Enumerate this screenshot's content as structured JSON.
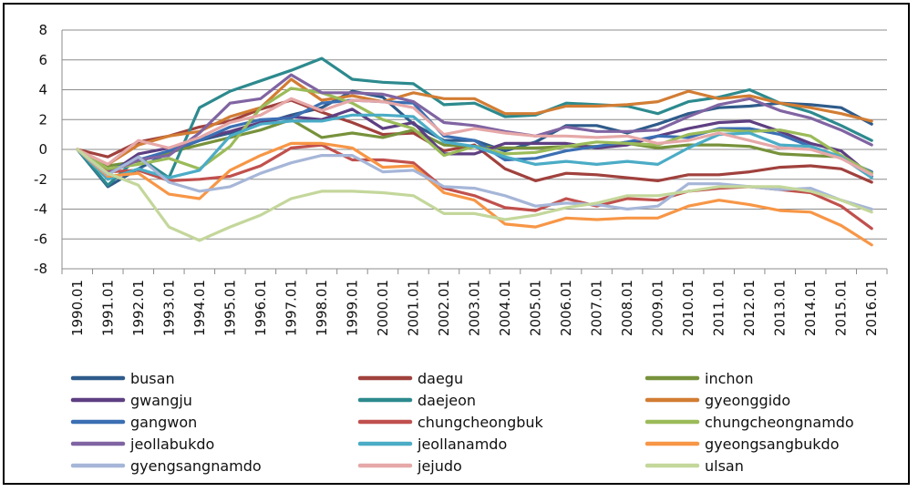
{
  "chart_data": {
    "type": "line",
    "title": "",
    "xlabel": "",
    "ylabel": "",
    "ylim": [
      -8,
      8
    ],
    "yticks": [
      -8,
      -6,
      -4,
      -2,
      0,
      2,
      4,
      6,
      8
    ],
    "grid": "horizontal",
    "legend_position": "bottom",
    "x": [
      "1990.01",
      "1991.01",
      "1992.01",
      "1993.01",
      "1994.01",
      "1995.01",
      "1996.01",
      "1997.01",
      "1998.01",
      "1999.01",
      "2000.01",
      "2001.01",
      "2002.01",
      "2003.01",
      "2004.01",
      "2005.01",
      "2006.01",
      "2007.01",
      "2008.01",
      "2009.01",
      "2010.01",
      "2011.01",
      "2012.01",
      "2013.01",
      "2014.01",
      "2015.01",
      "2016.01"
    ],
    "series": [
      {
        "name": "busan",
        "color": "#2e5b8a",
        "values": [
          0,
          -2.5,
          -1.3,
          -0.2,
          0.6,
          1.1,
          1.7,
          2.3,
          2.8,
          3.9,
          3.5,
          1.7,
          0.6,
          0.6,
          -0.1,
          0.5,
          1.6,
          1.6,
          1.1,
          1.7,
          2.4,
          2.8,
          2.9,
          3.1,
          3.0,
          2.8,
          1.7
        ]
      },
      {
        "name": "daegu",
        "color": "#a0413d",
        "values": [
          0,
          -0.5,
          0.5,
          0.9,
          1.5,
          1.9,
          2.7,
          3.3,
          2.5,
          1.8,
          1.0,
          1.1,
          -0.1,
          0.3,
          -1.3,
          -2.1,
          -1.6,
          -1.7,
          -1.9,
          -2.1,
          -1.7,
          -1.7,
          -1.5,
          -1.2,
          -1.1,
          -1.3,
          -2.2
        ]
      },
      {
        "name": "inchon",
        "color": "#77923b",
        "values": [
          0,
          -1.1,
          -0.8,
          -0.2,
          0.3,
          0.8,
          1.3,
          2.0,
          0.8,
          1.1,
          0.8,
          1.3,
          0.3,
          0.2,
          0.1,
          0.1,
          0.2,
          0.2,
          0.4,
          0.1,
          0.3,
          0.3,
          0.2,
          -0.3,
          -0.4,
          -0.5,
          -1.6
        ]
      },
      {
        "name": "gwangju",
        "color": "#5e3f82",
        "values": [
          0,
          -1.7,
          -0.3,
          0.1,
          0.7,
          1.2,
          1.8,
          2.2,
          2.0,
          2.7,
          1.4,
          1.8,
          -0.3,
          -0.3,
          0.4,
          0.4,
          0.4,
          0.1,
          0.3,
          0.9,
          1.4,
          1.8,
          1.9,
          1.2,
          0.4,
          -0.1,
          -1.8
        ]
      },
      {
        "name": "daejeon",
        "color": "#2d8a8e",
        "values": [
          0,
          -2.4,
          -0.5,
          -1.9,
          2.8,
          3.9,
          4.6,
          5.3,
          6.1,
          4.7,
          4.5,
          4.4,
          3.0,
          3.1,
          2.2,
          2.3,
          3.1,
          3.0,
          2.9,
          2.4,
          3.2,
          3.5,
          4.0,
          3.1,
          2.5,
          1.6,
          0.6
        ]
      },
      {
        "name": "gyeonggido",
        "color": "#d27d34",
        "values": [
          0,
          -1.0,
          0.3,
          0.9,
          1.2,
          2.2,
          2.8,
          4.7,
          3.3,
          3.6,
          3.2,
          3.8,
          3.4,
          3.4,
          2.4,
          2.4,
          2.9,
          2.9,
          3.0,
          3.2,
          3.9,
          3.4,
          3.6,
          3.1,
          2.8,
          2.4,
          1.9
        ]
      },
      {
        "name": "gangwon",
        "color": "#3b6fb3",
        "values": [
          0,
          -1.4,
          -0.7,
          -0.1,
          0.6,
          1.5,
          2.0,
          2.1,
          3.1,
          3.3,
          3.2,
          3.1,
          0.9,
          0.6,
          -0.7,
          -0.6,
          -0.1,
          0.2,
          0.5,
          0.9,
          0.8,
          1.4,
          1.4,
          1.0,
          0.2,
          -0.6,
          -1.5
        ]
      },
      {
        "name": "chungcheongbuk",
        "color": "#c0504d",
        "values": [
          0,
          -1.5,
          -1.4,
          -2.1,
          -2.0,
          -1.8,
          -1.1,
          0.1,
          0.3,
          -0.7,
          -0.7,
          -0.9,
          -2.6,
          -3.1,
          -3.9,
          -4.1,
          -3.3,
          -3.8,
          -3.3,
          -3.4,
          -2.8,
          -2.6,
          -2.5,
          -2.7,
          -2.9,
          -3.8,
          -5.3
        ]
      },
      {
        "name": "chungcheongnamdo",
        "color": "#9bbb59",
        "values": [
          0,
          -1.3,
          -1.0,
          -0.6,
          -1.3,
          0.2,
          2.8,
          4.1,
          3.8,
          3.1,
          2.0,
          1.4,
          -0.4,
          0.2,
          -0.3,
          -0.2,
          0.2,
          0.5,
          0.4,
          0.3,
          1.0,
          1.3,
          1.2,
          1.3,
          0.9,
          -0.4,
          -1.6
        ]
      },
      {
        "name": "jeollabukdo",
        "color": "#8064a2",
        "values": [
          0,
          -1.6,
          -0.7,
          -0.4,
          1.1,
          3.1,
          3.4,
          5.0,
          3.8,
          3.8,
          3.7,
          3.2,
          1.8,
          1.6,
          1.2,
          0.9,
          1.5,
          1.2,
          1.2,
          1.3,
          2.2,
          3.0,
          3.4,
          2.6,
          2.1,
          1.3,
          0.3
        ]
      },
      {
        "name": "jeollanamdo",
        "color": "#4bacc6",
        "values": [
          0,
          -2.0,
          -1.3,
          -1.9,
          -1.4,
          0.9,
          1.7,
          1.9,
          1.9,
          2.3,
          2.3,
          2.2,
          0.5,
          0.2,
          -0.5,
          -1.0,
          -0.8,
          -1.0,
          -0.8,
          -1.0,
          0.1,
          1.0,
          1.1,
          0.3,
          0.2,
          -0.5,
          -1.9
        ]
      },
      {
        "name": "gyeongsangbukdo",
        "color": "#f79646",
        "values": [
          0,
          -1.8,
          -1.6,
          -3.0,
          -3.3,
          -1.4,
          -0.4,
          0.4,
          0.4,
          0.1,
          -1.2,
          -1.1,
          -2.9,
          -3.4,
          -5.0,
          -5.2,
          -4.6,
          -4.7,
          -4.6,
          -4.6,
          -3.8,
          -3.4,
          -3.7,
          -4.1,
          -4.2,
          -5.1,
          -6.4
        ]
      },
      {
        "name": "gyengsangnamdo",
        "color": "#a6b6d8",
        "values": [
          0,
          -1.7,
          -0.5,
          -2.2,
          -2.8,
          -2.5,
          -1.6,
          -0.9,
          -0.4,
          -0.4,
          -1.5,
          -1.4,
          -2.5,
          -2.6,
          -3.1,
          -3.8,
          -3.6,
          -3.7,
          -4.0,
          -3.8,
          -2.3,
          -2.3,
          -2.5,
          -2.7,
          -2.6,
          -3.4,
          -4.0
        ]
      },
      {
        "name": "jejudo",
        "color": "#e6a8a8",
        "values": [
          0,
          -1.0,
          0.6,
          0.1,
          0.8,
          1.8,
          2.3,
          3.4,
          2.6,
          3.3,
          3.2,
          2.8,
          1.0,
          1.4,
          1.1,
          0.9,
          0.9,
          0.8,
          0.9,
          0.4,
          0.6,
          1.1,
          0.6,
          0.1,
          0.0,
          -0.6,
          -1.7
        ]
      },
      {
        "name": "ulsan",
        "color": "#c4d79b",
        "values": [
          0,
          -1.6,
          -2.4,
          -5.2,
          -6.1,
          -5.2,
          -4.4,
          -3.3,
          -2.8,
          -2.8,
          -2.9,
          -3.1,
          -4.3,
          -4.3,
          -4.7,
          -4.4,
          -3.9,
          -3.6,
          -3.1,
          -3.1,
          -2.8,
          -2.5,
          -2.5,
          -2.5,
          -2.8,
          -3.4,
          -4.2
        ]
      }
    ]
  }
}
